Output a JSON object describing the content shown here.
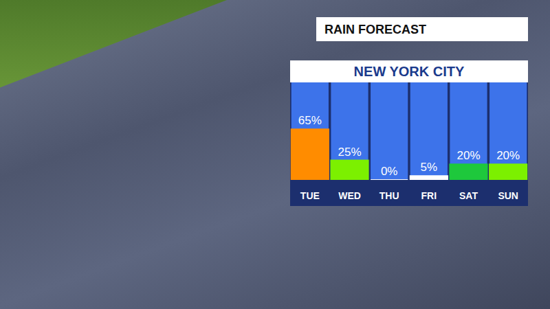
{
  "chart_data": {
    "type": "bar",
    "title": "NEW YORK CITY",
    "subtitle": "RAIN FORECAST",
    "categories": [
      "TUE",
      "WED",
      "THU",
      "FRI",
      "SAT",
      "SUN"
    ],
    "values": [
      65,
      25,
      0,
      5,
      20,
      20
    ],
    "value_labels": [
      "65%",
      "25%",
      "0%",
      "5%",
      "20%",
      "20%"
    ],
    "colors": [
      "#ff8c00",
      "#7cf000",
      "#ffffff",
      "#ffffff",
      "#1ec83c",
      "#7cf000"
    ],
    "ylim": [
      0,
      125
    ],
    "yticks": [],
    "grid": false,
    "data_labels": true,
    "tick_labels": "x"
  }
}
